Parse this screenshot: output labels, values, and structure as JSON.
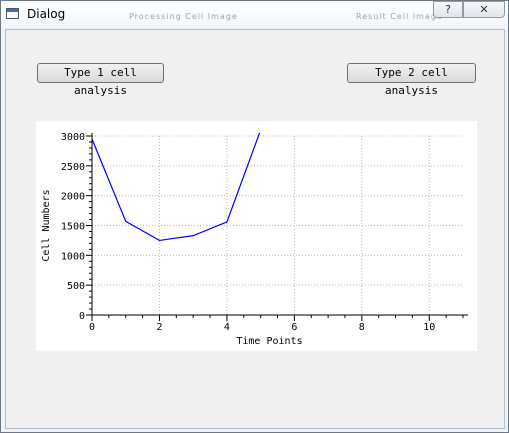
{
  "window": {
    "title": "Dialog",
    "background_titles": [
      "Processing Cell Image",
      "Result Cell Image"
    ],
    "help_label": "?",
    "close_label": "✕"
  },
  "buttons": {
    "type1": "Type 1 cell analysis",
    "type2": "Type 2 cell analysis"
  },
  "chart_data": {
    "type": "line",
    "xlabel": "Time Points",
    "ylabel": "Cell Numbers",
    "xlim": [
      0,
      11
    ],
    "ylim": [
      0,
      3000
    ],
    "xticks": [
      0,
      2,
      4,
      6,
      8,
      10
    ],
    "yticks": [
      0,
      500,
      1000,
      1500,
      2000,
      2500,
      3000
    ],
    "grid": true,
    "series": [
      {
        "color": "#0000ff",
        "x": [
          0,
          1,
          2,
          3,
          4,
          5,
          5.2
        ],
        "y": [
          2950,
          1570,
          1250,
          1330,
          1560,
          3100,
          3300
        ]
      }
    ]
  }
}
